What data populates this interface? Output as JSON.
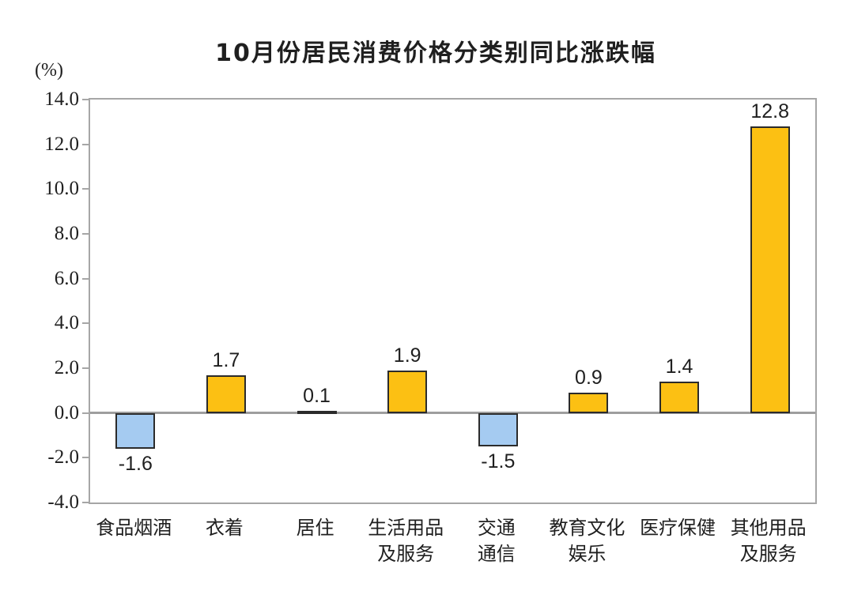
{
  "chart_data": {
    "type": "bar",
    "title": "10月份居民消费价格分类别同比涨跌幅",
    "unit_label": "(%)",
    "categories": [
      "食品烟酒",
      "衣着",
      "居住",
      "生活用品及服务",
      "交通通信",
      "教育文化娱乐",
      "医疗保健",
      "其他用品及服务"
    ],
    "category_label_lines": [
      [
        "食品烟酒"
      ],
      [
        "衣着"
      ],
      [
        "居住"
      ],
      [
        "生活用品",
        "及服务"
      ],
      [
        "交通",
        "通信"
      ],
      [
        "教育文化",
        "娱乐"
      ],
      [
        "医疗保健"
      ],
      [
        "其他用品",
        "及服务"
      ]
    ],
    "values": [
      -1.6,
      1.7,
      0.1,
      1.9,
      -1.5,
      0.9,
      1.4,
      12.8
    ],
    "value_labels": [
      "-1.6",
      "1.7",
      "0.1",
      "1.9",
      "-1.5",
      "0.9",
      "1.4",
      "12.8"
    ],
    "xlabel": "",
    "ylabel": "(%)",
    "ylim": [
      -4,
      14
    ],
    "ytick_step": 2,
    "ytick_labels": [
      "14.0",
      "12.0",
      "10.0",
      "8.0",
      "6.0",
      "4.0",
      "2.0",
      "0.0",
      "-2.0",
      "-4.0"
    ],
    "grid": false,
    "legend": "none",
    "colors": {
      "positive_bar": "#FCC013",
      "negative_bar": "#A5CBF1",
      "bar_border": "#2b2b2b",
      "axis_frame": "#a6a6a6",
      "zero_line": "#9e9e9e",
      "text": "#1f1f1f",
      "background": "#ffffff"
    }
  }
}
